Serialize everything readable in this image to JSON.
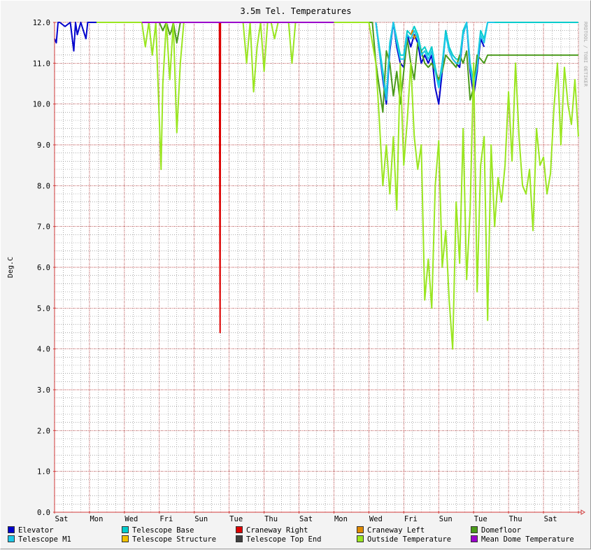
{
  "chart_data": {
    "type": "line",
    "title": "3.5m Tel. Temperatures",
    "ylabel": "Deg.C",
    "xlabel": "",
    "watermark": "RRDTOOL / TOBI OETIKER",
    "ylim": [
      0,
      12
    ],
    "y_ticks": [
      "0.0",
      "1.0",
      "2.0",
      "3.0",
      "4.0",
      "5.0",
      "6.0",
      "7.0",
      "8.0",
      "9.0",
      "10.0",
      "11.0",
      "12.0"
    ],
    "x_ticks": [
      "Sat",
      "Mon",
      "Wed",
      "Fri",
      "Sun",
      "Tue",
      "Thu",
      "Sat",
      "Mon",
      "Wed",
      "Fri",
      "Sun",
      "Tue",
      "Thu",
      "Sat"
    ],
    "xlim": [
      0,
      15
    ],
    "grid": true,
    "legend_position": "bottom",
    "colors": {
      "background": "#ffffff",
      "major_grid": "#d03a3a",
      "minor_grid": "#7a7a7a",
      "axis": "#d03a3a"
    },
    "series": [
      {
        "name": "Elevator",
        "color": "#0000cc",
        "x": [
          0.0,
          0.05,
          0.1,
          0.15,
          0.3,
          0.45,
          0.55,
          0.6,
          0.65,
          0.75,
          0.9,
          0.95,
          1.0,
          1.2,
          2.0,
          2.02,
          9.2,
          9.3,
          9.4,
          9.5,
          9.6,
          9.7,
          9.8,
          9.9,
          10.0,
          10.1,
          10.2,
          10.3,
          10.4,
          10.5,
          10.6,
          10.7,
          10.8,
          10.9,
          11.0,
          11.1,
          11.2,
          11.3,
          11.4,
          11.5,
          11.6,
          11.7,
          11.8,
          11.9,
          12.0,
          12.1,
          12.2,
          12.3,
          12.4,
          12.5,
          12.6
        ],
        "values": [
          11.6,
          11.5,
          12.0,
          12.0,
          11.9,
          12.0,
          11.3,
          12.0,
          11.7,
          12.0,
          11.6,
          12.0,
          12.0,
          12.0,
          12.0,
          null,
          12.0,
          11.3,
          10.6,
          10.0,
          11.3,
          12.0,
          11.4,
          11.0,
          10.9,
          11.7,
          11.4,
          11.7,
          11.5,
          11.0,
          11.2,
          11.0,
          11.2,
          10.4,
          10.0,
          10.8,
          11.8,
          11.3,
          11.1,
          11.0,
          10.9,
          11.7,
          12.0,
          10.8,
          10.2,
          10.8,
          11.6,
          11.4,
          null,
          null,
          null
        ]
      },
      {
        "name": "Telescope Base",
        "color": "#00cccc",
        "x": [
          9.2,
          9.3,
          9.4,
          9.5,
          9.6,
          9.7,
          9.8,
          9.9,
          10.0,
          10.1,
          10.2,
          10.3,
          10.4,
          10.5,
          10.6,
          10.7,
          10.8,
          10.9,
          11.0,
          11.1,
          11.2,
          11.3,
          11.4,
          11.5,
          11.6,
          11.7,
          11.8,
          11.9,
          12.0,
          12.1,
          12.2,
          12.3,
          12.4,
          13.0,
          13.5,
          15.0
        ],
        "values": [
          12.0,
          11.4,
          10.8,
          10.2,
          11.5,
          12.0,
          11.6,
          11.2,
          11.2,
          11.8,
          11.7,
          11.9,
          11.7,
          11.3,
          11.4,
          11.2,
          11.4,
          10.9,
          10.5,
          11.0,
          11.8,
          11.4,
          11.2,
          11.1,
          11.1,
          11.8,
          12.0,
          11.0,
          10.5,
          11.0,
          11.8,
          11.6,
          12.0,
          12.0,
          12.0,
          12.0
        ]
      },
      {
        "name": "Craneway Right",
        "color": "#dd0000",
        "x": [
          4.7,
          4.72,
          4.73,
          4.74,
          4.75,
          4.77,
          4.9
        ],
        "values": [
          12.0,
          12.0,
          8.2,
          4.4,
          12.0,
          12.0,
          12.0
        ]
      },
      {
        "name": "Craneway Left",
        "color": "#e08a00",
        "x": [
          10.2,
          10.25,
          10.3,
          10.35
        ],
        "values": [
          11.7,
          11.8,
          11.6,
          11.7
        ]
      },
      {
        "name": "Domefloor",
        "color": "#4a9a1a",
        "x": [
          3.0,
          3.1,
          3.15,
          3.2,
          3.3,
          3.35,
          3.4,
          3.5,
          3.6,
          3.7,
          9.1,
          9.2,
          9.3,
          9.4,
          9.5,
          9.6,
          9.7,
          9.8,
          9.9,
          10.0,
          10.1,
          10.2,
          10.3,
          10.4,
          10.5,
          10.6,
          10.7,
          10.8,
          10.9,
          11.0,
          11.1,
          11.2,
          11.3,
          11.4,
          11.5,
          11.6,
          11.7,
          11.8,
          11.9,
          12.0,
          12.1,
          12.2,
          12.3,
          12.4,
          12.6,
          13.0,
          13.5,
          14.0,
          14.5,
          15.0
        ],
        "values": [
          12.0,
          11.8,
          11.9,
          12.0,
          11.7,
          11.8,
          12.0,
          11.5,
          12.0,
          12.0,
          12.0,
          11.0,
          10.4,
          9.8,
          11.3,
          11.0,
          10.2,
          10.8,
          10.0,
          10.8,
          11.6,
          11.0,
          10.6,
          11.5,
          11.3,
          11.0,
          10.9,
          11.0,
          10.8,
          10.6,
          10.8,
          11.2,
          11.1,
          11.0,
          10.9,
          11.2,
          11.0,
          11.3,
          10.1,
          10.4,
          11.2,
          11.1,
          11.0,
          11.2,
          11.2,
          11.2,
          11.2,
          11.2,
          11.2,
          11.2
        ]
      },
      {
        "name": "Telescope M1",
        "color": "#1ec8e8",
        "x": [
          9.2,
          9.3,
          9.4,
          9.5,
          9.6,
          9.7,
          9.8,
          9.9,
          10.0,
          10.1,
          10.2,
          10.3,
          10.4,
          10.5,
          10.6,
          10.7,
          10.8,
          10.9,
          11.0,
          11.1,
          11.2,
          11.3,
          11.4,
          11.5,
          11.6,
          11.7,
          11.8,
          11.9,
          12.0,
          12.1,
          12.2,
          12.3,
          12.4,
          12.6
        ],
        "values": [
          12.0,
          11.3,
          10.7,
          10.1,
          11.4,
          12.0,
          11.5,
          11.1,
          11.1,
          11.7,
          11.6,
          11.8,
          11.6,
          11.2,
          11.3,
          11.1,
          11.3,
          10.8,
          10.4,
          10.9,
          11.7,
          11.3,
          11.1,
          11.0,
          11.0,
          11.7,
          12.0,
          10.9,
          10.4,
          10.9,
          11.7,
          11.5,
          12.0,
          12.0
        ]
      },
      {
        "name": "Telescope Structure",
        "color": "#f0c000",
        "x": [],
        "values": []
      },
      {
        "name": "Telescope Top End",
        "color": "#404040",
        "x": [],
        "values": []
      },
      {
        "name": "Outside Temperature",
        "color": "#9ae620",
        "x": [
          1.2,
          2.5,
          2.6,
          2.7,
          2.8,
          2.9,
          3.0,
          3.05,
          3.1,
          3.2,
          3.3,
          3.4,
          3.5,
          3.6,
          3.7,
          3.8,
          5.4,
          5.5,
          5.6,
          5.7,
          5.8,
          5.9,
          6.0,
          6.1,
          6.2,
          6.3,
          6.4,
          6.5,
          6.6,
          6.7,
          6.8,
          6.9,
          7.0,
          7.1,
          7.2,
          7.3,
          8.5,
          9.0,
          9.2,
          9.3,
          9.4,
          9.5,
          9.6,
          9.7,
          9.8,
          9.9,
          10.0,
          10.1,
          10.2,
          10.3,
          10.4,
          10.5,
          10.6,
          10.7,
          10.8,
          10.9,
          11.0,
          11.1,
          11.2,
          11.3,
          11.4,
          11.5,
          11.6,
          11.7,
          11.8,
          11.9,
          12.0,
          12.1,
          12.2,
          12.3,
          12.4,
          12.5,
          12.6,
          12.7,
          12.8,
          12.9,
          13.0,
          13.1,
          13.2,
          13.3,
          13.4,
          13.5,
          13.6,
          13.7,
          13.8,
          13.9,
          14.0,
          14.1,
          14.2,
          14.3,
          14.4,
          14.5,
          14.6,
          14.7,
          14.8,
          14.9,
          15.0
        ],
        "values": [
          12.0,
          12.0,
          11.4,
          12.0,
          11.2,
          12.0,
          9.6,
          8.4,
          10.5,
          12.0,
          10.6,
          12.0,
          9.3,
          11.0,
          12.0,
          12.0,
          12.0,
          11.0,
          12.0,
          10.3,
          11.4,
          12.0,
          10.8,
          12.0,
          12.0,
          11.6,
          12.0,
          12.0,
          12.0,
          12.0,
          11.0,
          12.0,
          12.0,
          12.0,
          12.0,
          12.0,
          12.0,
          12.0,
          11.0,
          9.6,
          8.0,
          9.0,
          7.8,
          9.2,
          7.4,
          11.0,
          8.5,
          9.6,
          11.0,
          9.2,
          8.4,
          9.0,
          5.2,
          6.2,
          5.0,
          8.0,
          9.1,
          6.0,
          6.9,
          5.2,
          4.0,
          7.6,
          6.1,
          9.4,
          5.7,
          7.4,
          11.0,
          5.4,
          8.5,
          9.2,
          4.7,
          9.0,
          7.0,
          8.2,
          7.6,
          8.5,
          10.3,
          8.6,
          11.0,
          9.2,
          8.0,
          7.8,
          8.4,
          6.9,
          9.4,
          8.5,
          8.7,
          7.8,
          8.3,
          9.9,
          11.0,
          9.0,
          10.9,
          10.0,
          9.5,
          10.6,
          9.2
        ]
      },
      {
        "name": "Mean Dome Temperature",
        "color": "#9a00cc",
        "x": [
          2.5,
          3.0,
          4.8,
          8.0
        ],
        "values": [
          12.0,
          12.0,
          12.0,
          12.0
        ]
      }
    ]
  }
}
